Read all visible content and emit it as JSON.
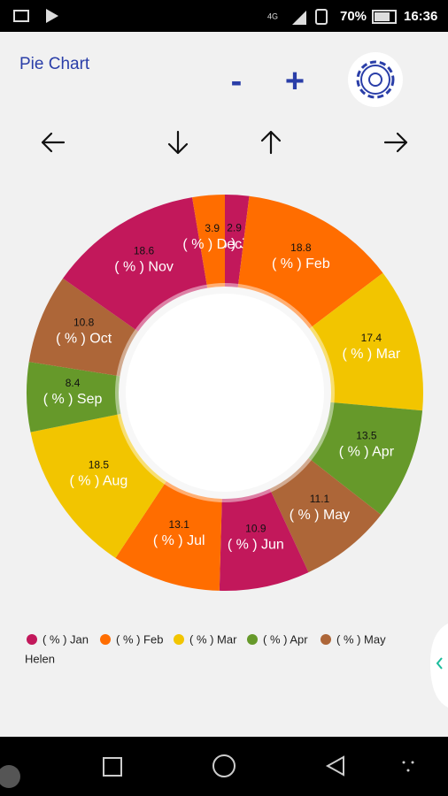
{
  "status_bar": {
    "network": "4G",
    "battery": "70%",
    "time": "16:36"
  },
  "header": {
    "title": "Pie Chart",
    "minus": "-",
    "plus": "+"
  },
  "chart_data": {
    "type": "donut",
    "categories": [
      "( % ) Jan",
      "( % ) Feb",
      "( % ) Mar",
      "( % ) Apr",
      "( % ) May",
      "( % ) Jun",
      "( % ) Jul",
      "( % ) Aug",
      "( % ) Sep",
      "( % ) Oct",
      "( % ) Nov",
      "( % ) Dec"
    ],
    "values": [
      2.9,
      18.8,
      17.4,
      13.5,
      11.1,
      10.9,
      13.1,
      18.5,
      8.4,
      10.8,
      18.6,
      3.9
    ],
    "colors": [
      "#c2185b",
      "#ff6d00",
      "#f2c500",
      "#66992a",
      "#ad6638",
      "#c2185b",
      "#ff6d00",
      "#f2c500",
      "#66992a",
      "#ad6638",
      "#c2185b",
      "#ff6d00"
    ],
    "legend": {
      "position": "bottom-left",
      "label": "Helen"
    }
  }
}
